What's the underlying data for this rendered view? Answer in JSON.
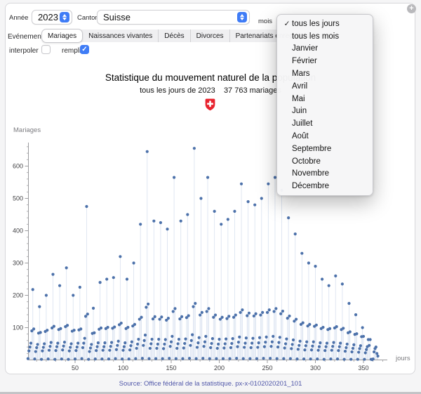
{
  "icons": {
    "check": "✓",
    "plus": "+",
    "menu_check": "✓"
  },
  "controls": {
    "annee": {
      "label": "Année",
      "value": "2023"
    },
    "canton": {
      "label": "Canton",
      "value": "Suisse"
    },
    "mois": {
      "label": "mois",
      "value": "tous les jours"
    },
    "evenement": {
      "label": "Evénement",
      "options": [
        "Mariages",
        "Naissances vivantes",
        "Décès",
        "Divorces",
        "Partenariats enregistrés"
      ],
      "selected": "Mariages"
    },
    "interpoler": {
      "label": "interpoler",
      "checked": false
    },
    "remplir": {
      "label": "remplir",
      "checked": true
    }
  },
  "menu": {
    "items": [
      {
        "label": "tous les jours",
        "selected": true
      },
      {
        "label": "tous les mois",
        "selected": false
      },
      {
        "label": "Janvier",
        "selected": false
      },
      {
        "label": "Février",
        "selected": false
      },
      {
        "label": "Mars",
        "selected": false
      },
      {
        "label": "Avril",
        "selected": false
      },
      {
        "label": "Mai",
        "selected": false
      },
      {
        "label": "Juin",
        "selected": false
      },
      {
        "label": "Juillet",
        "selected": false
      },
      {
        "label": "Août",
        "selected": false
      },
      {
        "label": "Septembre",
        "selected": false
      },
      {
        "label": "Octobre",
        "selected": false
      },
      {
        "label": "Novembre",
        "selected": false
      },
      {
        "label": "Décembre",
        "selected": false
      }
    ]
  },
  "footer": {
    "source": "Source: Office fédéral de la statistique. px-x-0102020201_101"
  },
  "colors": {
    "dot": "#4c71aa",
    "stem": "#dce4f1",
    "axis": "#9b9b9e",
    "tick_text": "#3f3f42",
    "accent_blue": "#3f7cf6",
    "flag_red": "#e8232e",
    "source_text": "#5057a9"
  },
  "chart_data": {
    "type": "stem",
    "title": "Statistique du mouvement naturel de la population",
    "subtitle": "tous les jours de 2023    37 763 mariages",
    "total_mariages": "37 763",
    "xlabel": "jours",
    "ylabel": "Mariages",
    "x_unit": "day of year, 1–365",
    "xticks": [
      50,
      100,
      150,
      200,
      250,
      300,
      350
    ],
    "yticks": [
      100,
      200,
      300,
      400,
      500,
      600
    ],
    "xlim": [
      0,
      372
    ],
    "ylim": [
      0,
      680
    ],
    "values": [
      4,
      28,
      40,
      52,
      90,
      218,
      96,
      3,
      26,
      38,
      48,
      83,
      165,
      85,
      2,
      28,
      39,
      50,
      88,
      200,
      92,
      3,
      30,
      42,
      54,
      99,
      265,
      104,
      2,
      29,
      41,
      52,
      94,
      230,
      97,
      3,
      31,
      43,
      55,
      103,
      285,
      107,
      2,
      28,
      39,
      50,
      89,
      200,
      92,
      3,
      29,
      40,
      52,
      93,
      225,
      96,
      4,
      38,
      52,
      67,
      135,
      475,
      142,
      2,
      26,
      37,
      48,
      82,
      160,
      84,
      3,
      29,
      41,
      53,
      95,
      240,
      99,
      3,
      30,
      41,
      53,
      97,
      250,
      101,
      3,
      30,
      42,
      54,
      98,
      255,
      102,
      4,
      32,
      45,
      58,
      109,
      320,
      114,
      3,
      30,
      41,
      53,
      97,
      250,
      101,
      3,
      31,
      44,
      56,
      105,
      300,
      110,
      4,
      36,
      49,
      64,
      126,
      420,
      132,
      5,
      45,
      60,
      77,
      163,
      645,
      173,
      4,
      36,
      50,
      64,
      127,
      430,
      134,
      4,
      36,
      49,
      64,
      126,
      425,
      133,
      4,
      35,
      49,
      63,
      123,
      405,
      129,
      5,
      42,
      56,
      73,
      150,
      565,
      159,
      4,
      36,
      50,
      64,
      127,
      430,
      134,
      4,
      37,
      51,
      65,
      131,
      450,
      137,
      5,
      45,
      60,
      78,
      165,
      655,
      175,
      4,
      39,
      53,
      69,
      139,
      500,
      147,
      5,
      42,
      56,
      73,
      150,
      565,
      159,
      4,
      38,
      51,
      66,
      132,
      460,
      139,
      4,
      36,
      49,
      64,
      126,
      420,
      132,
      4,
      37,
      50,
      65,
      128,
      435,
      135,
      4,
      38,
      51,
      66,
      132,
      460,
      139,
      5,
      41,
      55,
      71,
      147,
      545,
      155,
      4,
      39,
      52,
      68,
      137,
      490,
      145,
      4,
      38,
      52,
      67,
      136,
      480,
      143,
      4,
      39,
      53,
      69,
      139,
      500,
      147,
      5,
      41,
      55,
      71,
      147,
      545,
      155,
      5,
      42,
      56,
      73,
      150,
      565,
      159,
      4,
      40,
      54,
      70,
      143,
      525,
      151,
      4,
      37,
      50,
      65,
      129,
      440,
      136,
      4,
      35,
      48,
      62,
      120,
      390,
      126,
      3,
      33,
      45,
      58,
      110,
      330,
      115,
      3,
      31,
      44,
      56,
      105,
      300,
      110,
      3,
      31,
      43,
      56,
      104,
      290,
      108,
      3,
      30,
      41,
      53,
      97,
      250,
      101,
      2,
      29,
      41,
      52,
      94,
      230,
      97,
      3,
      30,
      42,
      54,
      99,
      260,
      103,
      3,
      29,
      41,
      52,
      94,
      235,
      98,
      2,
      27,
      38,
      49,
      84,
      175,
      87,
      2,
      25,
      36,
      47,
      79,
      140,
      81,
      2,
      24,
      35,
      44,
      72,
      100,
      73,
      2,
      22,
      32,
      41,
      63,
      45,
      63,
      2,
      1,
      3,
      25,
      35,
      40,
      20,
      12
    ]
  }
}
